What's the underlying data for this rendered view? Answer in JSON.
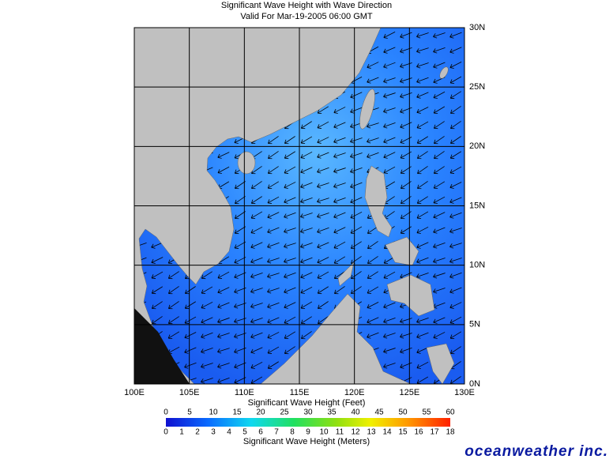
{
  "header": {
    "title": "Significant Wave Height with Wave Direction",
    "subtitle": "Valid For Mar-19-2005 06:00 GMT"
  },
  "map": {
    "lon_labels": [
      "100E",
      "105E",
      "110E",
      "115E",
      "120E",
      "125E",
      "130E"
    ],
    "lat_labels": [
      "30N",
      "25N",
      "20N",
      "15N",
      "10N",
      "5N",
      "0N"
    ]
  },
  "legend": {
    "feet_label": "Significant Wave Height (Feet)",
    "feet_ticks": [
      0,
      5,
      10,
      15,
      20,
      25,
      30,
      35,
      40,
      45,
      50,
      55,
      60
    ],
    "meters_ticks": [
      0,
      1,
      2,
      3,
      4,
      5,
      6,
      7,
      8,
      9,
      10,
      11,
      12,
      13,
      14,
      15,
      16,
      17,
      18
    ],
    "meters_label": "Significant Wave Height (Meters)"
  },
  "logo": "oceanweather inc."
}
